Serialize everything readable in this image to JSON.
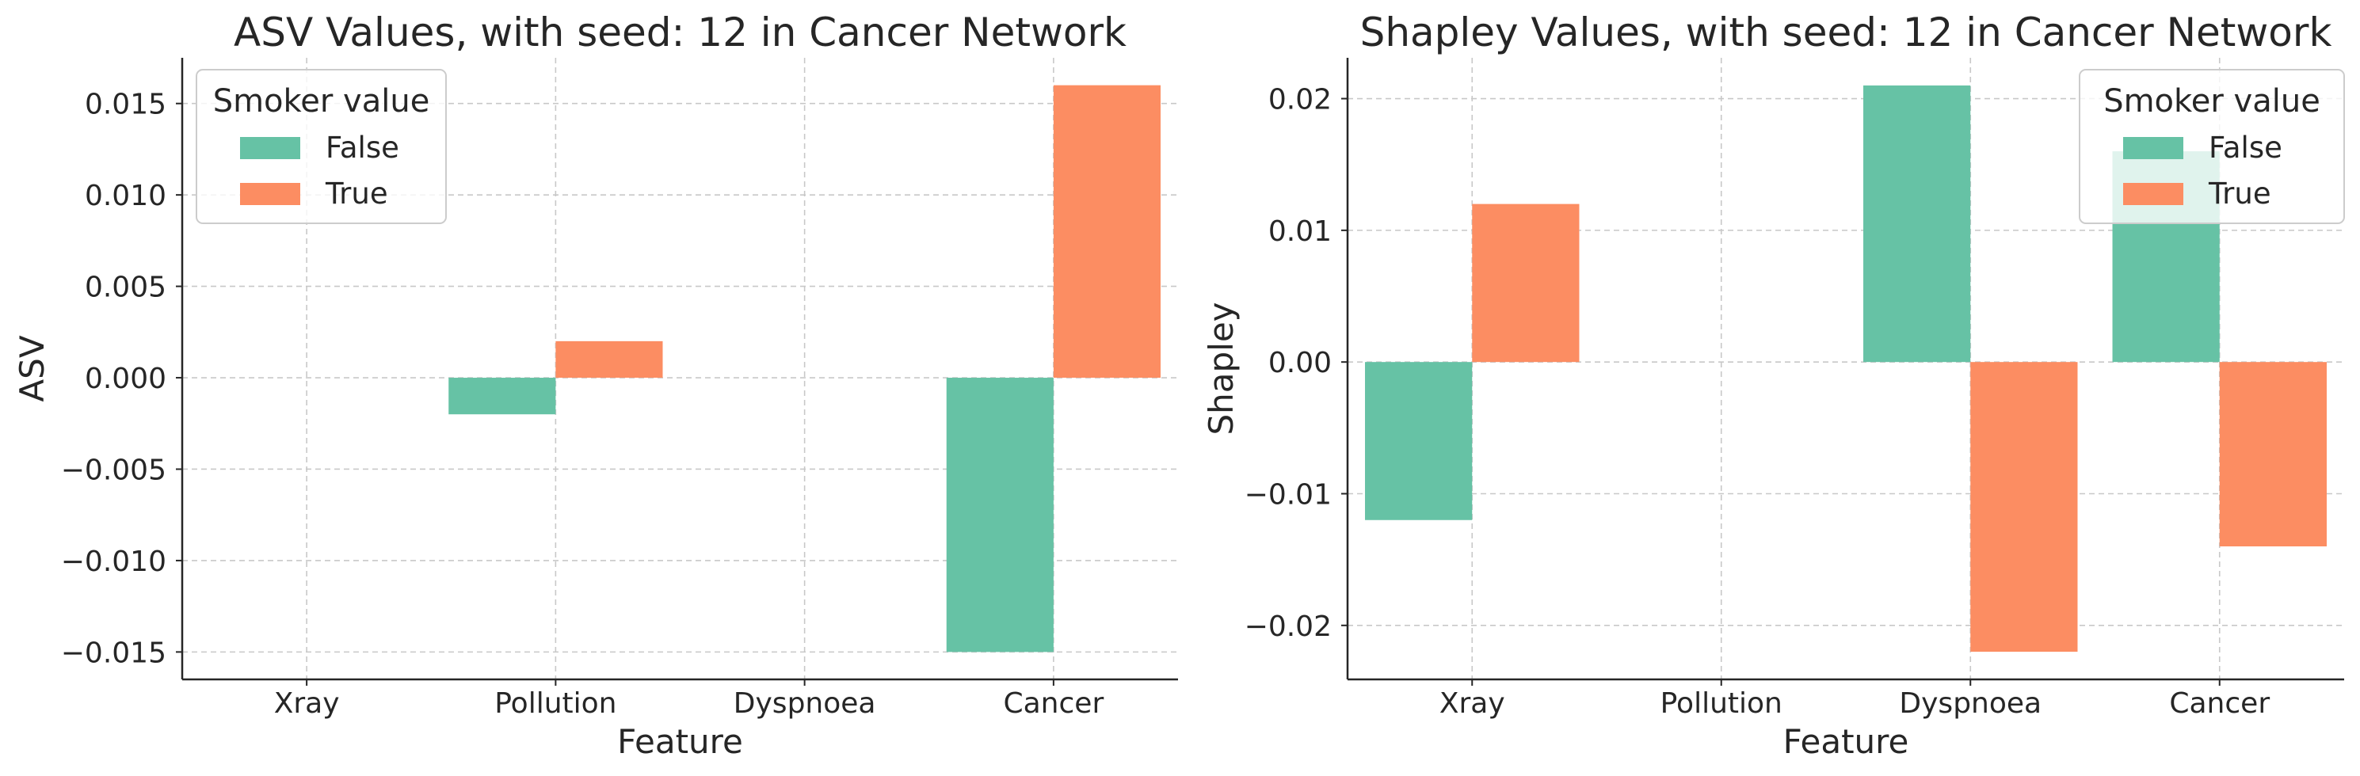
{
  "colors": {
    "False": "#66c2a5",
    "True": "#fc8d62"
  },
  "chart_data": [
    {
      "type": "bar",
      "title": "ASV Values, with seed: 12 in Cancer Network",
      "xlabel": "Feature",
      "ylabel": "ASV",
      "categories": [
        "Xray",
        "Pollution",
        "Dyspnoea",
        "Cancer"
      ],
      "series": [
        {
          "name": "False",
          "values": [
            0.0,
            -0.002,
            0.0,
            -0.015
          ]
        },
        {
          "name": "True",
          "values": [
            0.0,
            0.002,
            0.0,
            0.016
          ]
        }
      ],
      "ylim": [
        -0.0165,
        0.0175
      ],
      "yticks": [
        -0.015,
        -0.01,
        -0.005,
        0.0,
        0.005,
        0.01,
        0.015
      ],
      "ytick_labels": [
        "−0.015",
        "−0.010",
        "−0.005",
        "0.000",
        "0.005",
        "0.010",
        "0.015"
      ],
      "grid": true,
      "legend": {
        "title": "Smoker value",
        "position": "top-left",
        "entries": [
          "False",
          "True"
        ]
      }
    },
    {
      "type": "bar",
      "title": "Shapley Values, with seed: 12 in Cancer Network",
      "xlabel": "Feature",
      "ylabel": "Shapley",
      "categories": [
        "Xray",
        "Pollution",
        "Dyspnoea",
        "Cancer"
      ],
      "series": [
        {
          "name": "False",
          "values": [
            -0.012,
            0.0,
            0.021,
            0.016
          ]
        },
        {
          "name": "True",
          "values": [
            0.012,
            0.0,
            -0.022,
            -0.014
          ]
        }
      ],
      "ylim": [
        -0.0241,
        0.0231
      ],
      "yticks": [
        -0.02,
        -0.01,
        0.0,
        0.01,
        0.02
      ],
      "ytick_labels": [
        "−0.02",
        "−0.01",
        "0.00",
        "0.01",
        "0.02"
      ],
      "grid": true,
      "legend": {
        "title": "Smoker value",
        "position": "top-right",
        "entries": [
          "False",
          "True"
        ]
      }
    }
  ]
}
